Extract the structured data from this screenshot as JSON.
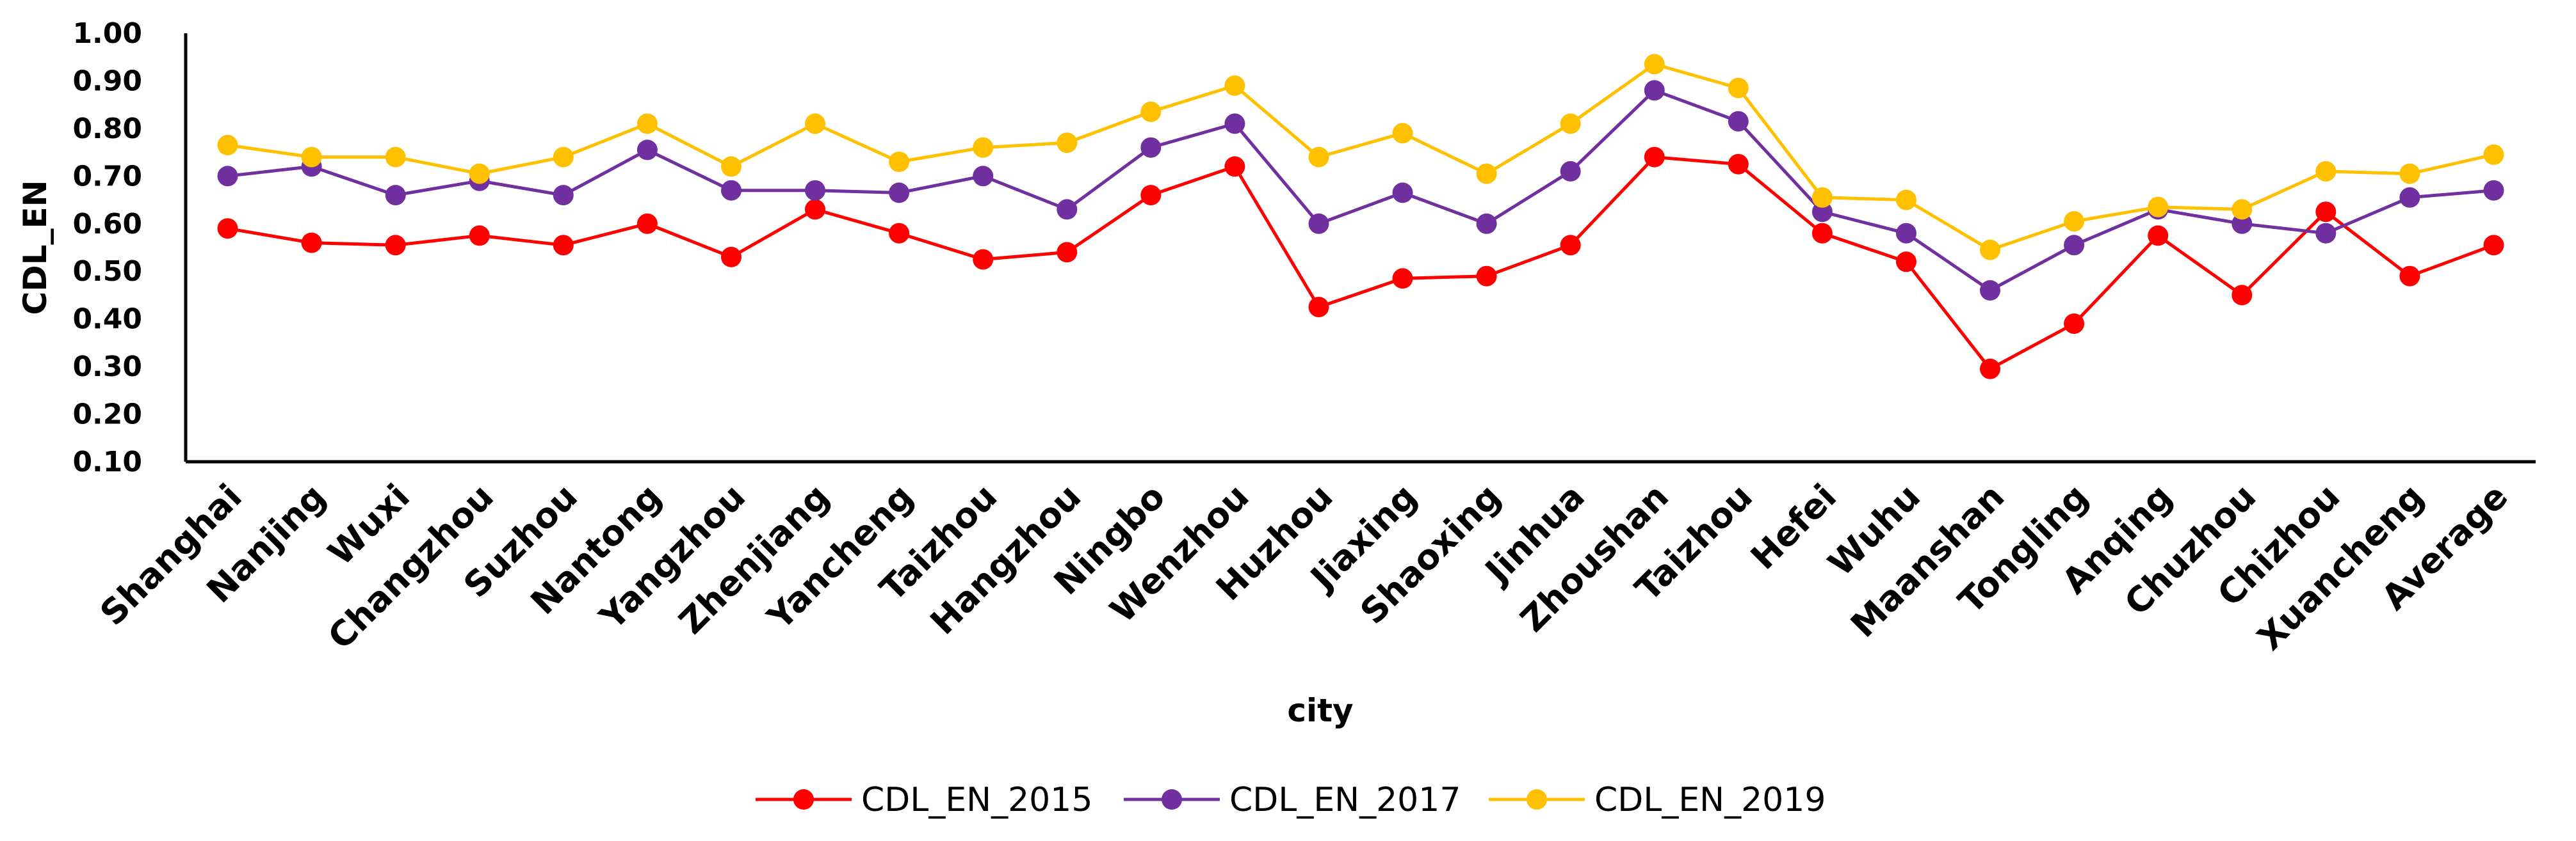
{
  "chart_data": {
    "type": "line",
    "title": "",
    "xlabel": "city",
    "ylabel": "CDL_EN",
    "ylim": [
      0.1,
      1.0
    ],
    "yticks": [
      "0.10",
      "0.20",
      "0.30",
      "0.40",
      "0.50",
      "0.60",
      "0.70",
      "0.80",
      "0.90",
      "1.00"
    ],
    "grid": false,
    "legend_position": "bottom",
    "categories": [
      "Shanghai",
      "Nanjing",
      "Wuxi",
      "Changzhou",
      "Suzhou",
      "Nantong",
      "Yangzhou",
      "Zhenjiang",
      "Yancheng",
      "Taizhou",
      "Hangzhou",
      "Ningbo",
      "Wenzhou",
      "Huzhou",
      "Jiaxing",
      "Shaoxing",
      "Jinhua",
      "Zhoushan",
      "Taizhou",
      "Hefei",
      "Wuhu",
      "Maanshan",
      "Tongling",
      "Anqing",
      "Chuzhou",
      "Chizhou",
      "Xuancheng",
      "Average"
    ],
    "series": [
      {
        "name": "CDL_EN_2015",
        "color": "#ff0000",
        "values": [
          0.59,
          0.56,
          0.555,
          0.575,
          0.555,
          0.6,
          0.53,
          0.63,
          0.58,
          0.525,
          0.54,
          0.66,
          0.72,
          0.425,
          0.485,
          0.49,
          0.555,
          0.74,
          0.725,
          0.58,
          0.52,
          0.295,
          0.39,
          0.575,
          0.45,
          0.625,
          0.49,
          0.555
        ]
      },
      {
        "name": "CDL_EN_2017",
        "color": "#7030a0",
        "values": [
          0.7,
          0.72,
          0.66,
          0.69,
          0.66,
          0.755,
          0.67,
          0.67,
          0.665,
          0.7,
          0.63,
          0.76,
          0.81,
          0.6,
          0.665,
          0.6,
          0.71,
          0.88,
          0.815,
          0.625,
          0.58,
          0.46,
          0.555,
          0.63,
          0.6,
          0.58,
          0.655,
          0.67
        ]
      },
      {
        "name": "CDL_EN_2019",
        "color": "#ffc000",
        "values": [
          0.765,
          0.74,
          0.74,
          0.705,
          0.74,
          0.81,
          0.72,
          0.81,
          0.73,
          0.76,
          0.77,
          0.835,
          0.89,
          0.74,
          0.79,
          0.705,
          0.81,
          0.935,
          0.885,
          0.655,
          0.65,
          0.545,
          0.605,
          0.635,
          0.63,
          0.71,
          0.705,
          0.745
        ]
      }
    ]
  }
}
